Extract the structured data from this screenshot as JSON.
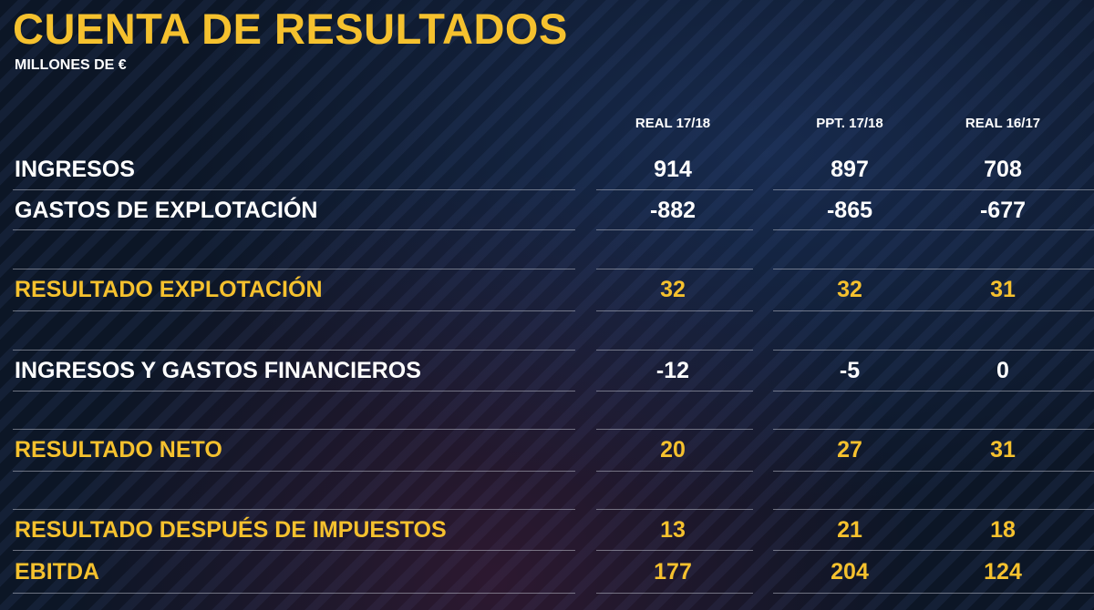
{
  "title": "CUENTA DE RESULTADOS",
  "subtitle": "MILLONES DE €",
  "columns": [
    "REAL 17/18",
    "PPT. 17/18",
    "REAL 16/17"
  ],
  "rows": [
    {
      "label": "INGRESOS",
      "values": [
        "914",
        "897",
        "708"
      ],
      "highlight": false
    },
    {
      "label": "GASTOS DE EXPLOTACIÓN",
      "values": [
        "-882",
        "-865",
        "-677"
      ],
      "highlight": false
    },
    {
      "label": "RESULTADO EXPLOTACIÓN",
      "values": [
        "32",
        "32",
        "31"
      ],
      "highlight": true
    },
    {
      "label": "INGRESOS Y GASTOS FINANCIEROS",
      "values": [
        "-12",
        "-5",
        "0"
      ],
      "highlight": false
    },
    {
      "label": "RESULTADO NETO",
      "values": [
        "20",
        "27",
        "31"
      ],
      "highlight": true
    },
    {
      "label": "RESULTADO DESPUÉS DE IMPUESTOS",
      "values": [
        "13",
        "21",
        "18"
      ],
      "highlight": true
    },
    {
      "label": "EBITDA",
      "values": [
        "177",
        "204",
        "124"
      ],
      "highlight": true
    }
  ],
  "colors": {
    "accent": "#f5c12e",
    "text": "#ffffff",
    "background": "#0c1626"
  }
}
